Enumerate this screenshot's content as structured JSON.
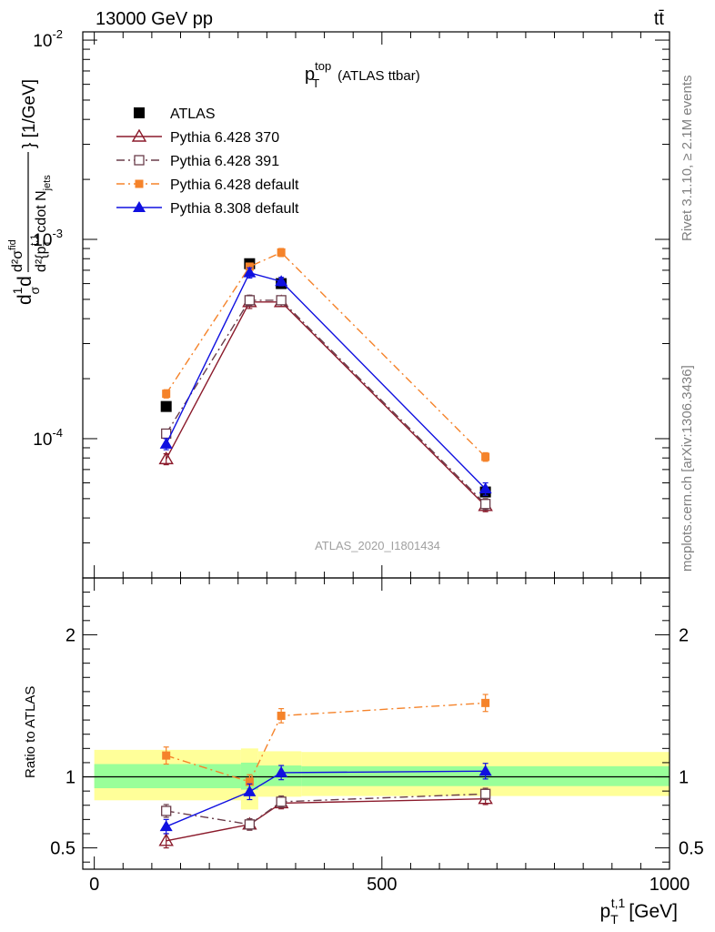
{
  "header": {
    "process": "13000 GeV pp",
    "final_state": "tt̄"
  },
  "side": {
    "rivet": "Rivet 3.1.10, ≥ 2.1M events",
    "site": "mcplots.cern.ch [arXiv:1306.3436]"
  },
  "chart_data": [
    {
      "type": "scatter",
      "panel": "main",
      "title": "p_T^top (ATLAS ttbar)",
      "title_parts": {
        "p": "p",
        "sup": "top",
        "sub": "T",
        "rest": "(ATLAS ttbar)"
      },
      "analysis_id": "ATLAS_2020_I1801434",
      "ylabel": "d²σ^fid / d²{p_T^t,1 cdot N_jets} [1/GeV]",
      "ylabel_parts": {
        "prefix": "d",
        "frac_num": "1",
        "frac_den": "σ",
        "d": "d",
        "num": "d²σ",
        "num_sup": "fid",
        "den": "d²{p",
        "den_sub": "T",
        "den_sup": "t,1",
        "den_mid": "cdot N",
        "den_sub2": "jets",
        "units": "} [1/GeV]"
      },
      "yscale": "log",
      "ylim": [
        2e-05,
        0.011
      ],
      "xlim": [
        -20,
        1000
      ],
      "yticks": [
        {
          "value": 0.01,
          "base": "10",
          "exp": "-2"
        },
        {
          "value": 0.001,
          "base": "10",
          "exp": "-3"
        },
        {
          "value": 0.0001,
          "base": "10",
          "exp": "-4"
        }
      ],
      "legend_position": "top-left",
      "series": [
        {
          "name": "ATLAS",
          "color": "#000000",
          "marker": "square-filled",
          "line": "none",
          "x": [
            125,
            270,
            325,
            680
          ],
          "y": [
            0.000145,
            0.000755,
            0.0006,
            5.4e-05
          ],
          "yerr": [
            5e-06,
            2e-05,
            1.8e-05,
            2e-06
          ]
        },
        {
          "name": "Pythia 6.428 370",
          "color": "#8b1a2b",
          "marker": "triangle-open",
          "line": "solid",
          "x": [
            125,
            270,
            325,
            680
          ],
          "y": [
            7.9e-05,
            0.000485,
            0.000485,
            4.6e-05
          ],
          "yerr": [
            5e-06,
            3.5e-05,
            2.5e-05,
            3e-06
          ]
        },
        {
          "name": "Pythia 6.428 391",
          "color": "#6a3d4a",
          "marker": "square-open",
          "line": "dashdot",
          "x": [
            125,
            270,
            325,
            680
          ],
          "y": [
            0.000106,
            0.000495,
            0.000495,
            4.7e-05
          ],
          "yerr": [
            5e-06,
            3e-05,
            2.5e-05,
            3e-06
          ]
        },
        {
          "name": "Pythia 6.428 default",
          "color": "#f5832a",
          "marker": "square-filled-small",
          "line": "dashdot",
          "x": [
            125,
            270,
            325,
            680
          ],
          "y": [
            0.000168,
            0.00073,
            0.00086,
            8.1e-05
          ],
          "yerr": [
            8e-06,
            3e-05,
            4e-05,
            4e-06
          ]
        },
        {
          "name": "Pythia 8.308 default",
          "color": "#1010e0",
          "marker": "triangle-filled",
          "line": "solid",
          "x": [
            125,
            270,
            325,
            680
          ],
          "y": [
            9.4e-05,
            0.00068,
            0.000615,
            5.6e-05
          ],
          "yerr": [
            6e-06,
            4e-05,
            3e-05,
            4e-06
          ]
        }
      ]
    },
    {
      "type": "scatter",
      "panel": "ratio",
      "ylabel": "Ratio to ATLAS",
      "xlabel": "p_T^t,1 [GeV]",
      "xlabel_parts": {
        "p": "p",
        "sub": "T",
        "sup": "t,1",
        "units": "[GeV]"
      },
      "ylim": [
        0.35,
        2.4
      ],
      "xlim": [
        -20,
        1000
      ],
      "yticks": [
        0.5,
        1,
        2
      ],
      "ytick_labels": [
        "0.5",
        "1",
        "2"
      ],
      "xticks": [
        0,
        500,
        1000
      ],
      "xtick_labels": [
        "0",
        "500",
        "1000"
      ],
      "bands": [
        {
          "color": "#ffff99",
          "segments": [
            {
              "x": [
                0,
                255
              ],
              "lo": 0.835,
              "hi": 1.19
            },
            {
              "x": [
                255,
                285
              ],
              "lo": 0.77,
              "hi": 1.2
            },
            {
              "x": [
                285,
                360
              ],
              "lo": 0.86,
              "hi": 1.18
            },
            {
              "x": [
                360,
                1000
              ],
              "lo": 0.865,
              "hi": 1.175
            }
          ]
        },
        {
          "color": "#99ff99",
          "segments": [
            {
              "x": [
                0,
                255
              ],
              "lo": 0.92,
              "hi": 1.09
            },
            {
              "x": [
                255,
                285
              ],
              "lo": 0.91,
              "hi": 1.1
            },
            {
              "x": [
                285,
                360
              ],
              "lo": 0.935,
              "hi": 1.08
            },
            {
              "x": [
                360,
                1000
              ],
              "lo": 0.935,
              "hi": 1.075
            }
          ]
        }
      ],
      "series": [
        {
          "name": "Pythia 6.428 370",
          "color": "#8b1a2b",
          "marker": "triangle-open",
          "line": "solid",
          "x": [
            125,
            270,
            325,
            680
          ],
          "y": [
            0.55,
            0.665,
            0.815,
            0.845
          ],
          "yerr": [
            0.05,
            0.04,
            0.04,
            0.04
          ]
        },
        {
          "name": "Pythia 6.428 391",
          "color": "#6a3d4a",
          "marker": "square-open",
          "line": "dashdot",
          "x": [
            125,
            270,
            325,
            680
          ],
          "y": [
            0.76,
            0.665,
            0.825,
            0.88
          ],
          "yerr": [
            0.045,
            0.04,
            0.04,
            0.04
          ]
        },
        {
          "name": "Pythia 6.428 default",
          "color": "#f5832a",
          "marker": "square-filled-small",
          "line": "dashdot",
          "x": [
            125,
            270,
            325,
            680
          ],
          "y": [
            1.15,
            0.965,
            1.43,
            1.52
          ],
          "yerr": [
            0.06,
            0.05,
            0.05,
            0.06
          ]
        },
        {
          "name": "Pythia 8.308 default",
          "color": "#1010e0",
          "marker": "triangle-filled",
          "line": "solid",
          "x": [
            125,
            270,
            325,
            680
          ],
          "y": [
            0.65,
            0.895,
            1.03,
            1.04
          ],
          "yerr": [
            0.05,
            0.055,
            0.05,
            0.055
          ]
        }
      ]
    }
  ]
}
